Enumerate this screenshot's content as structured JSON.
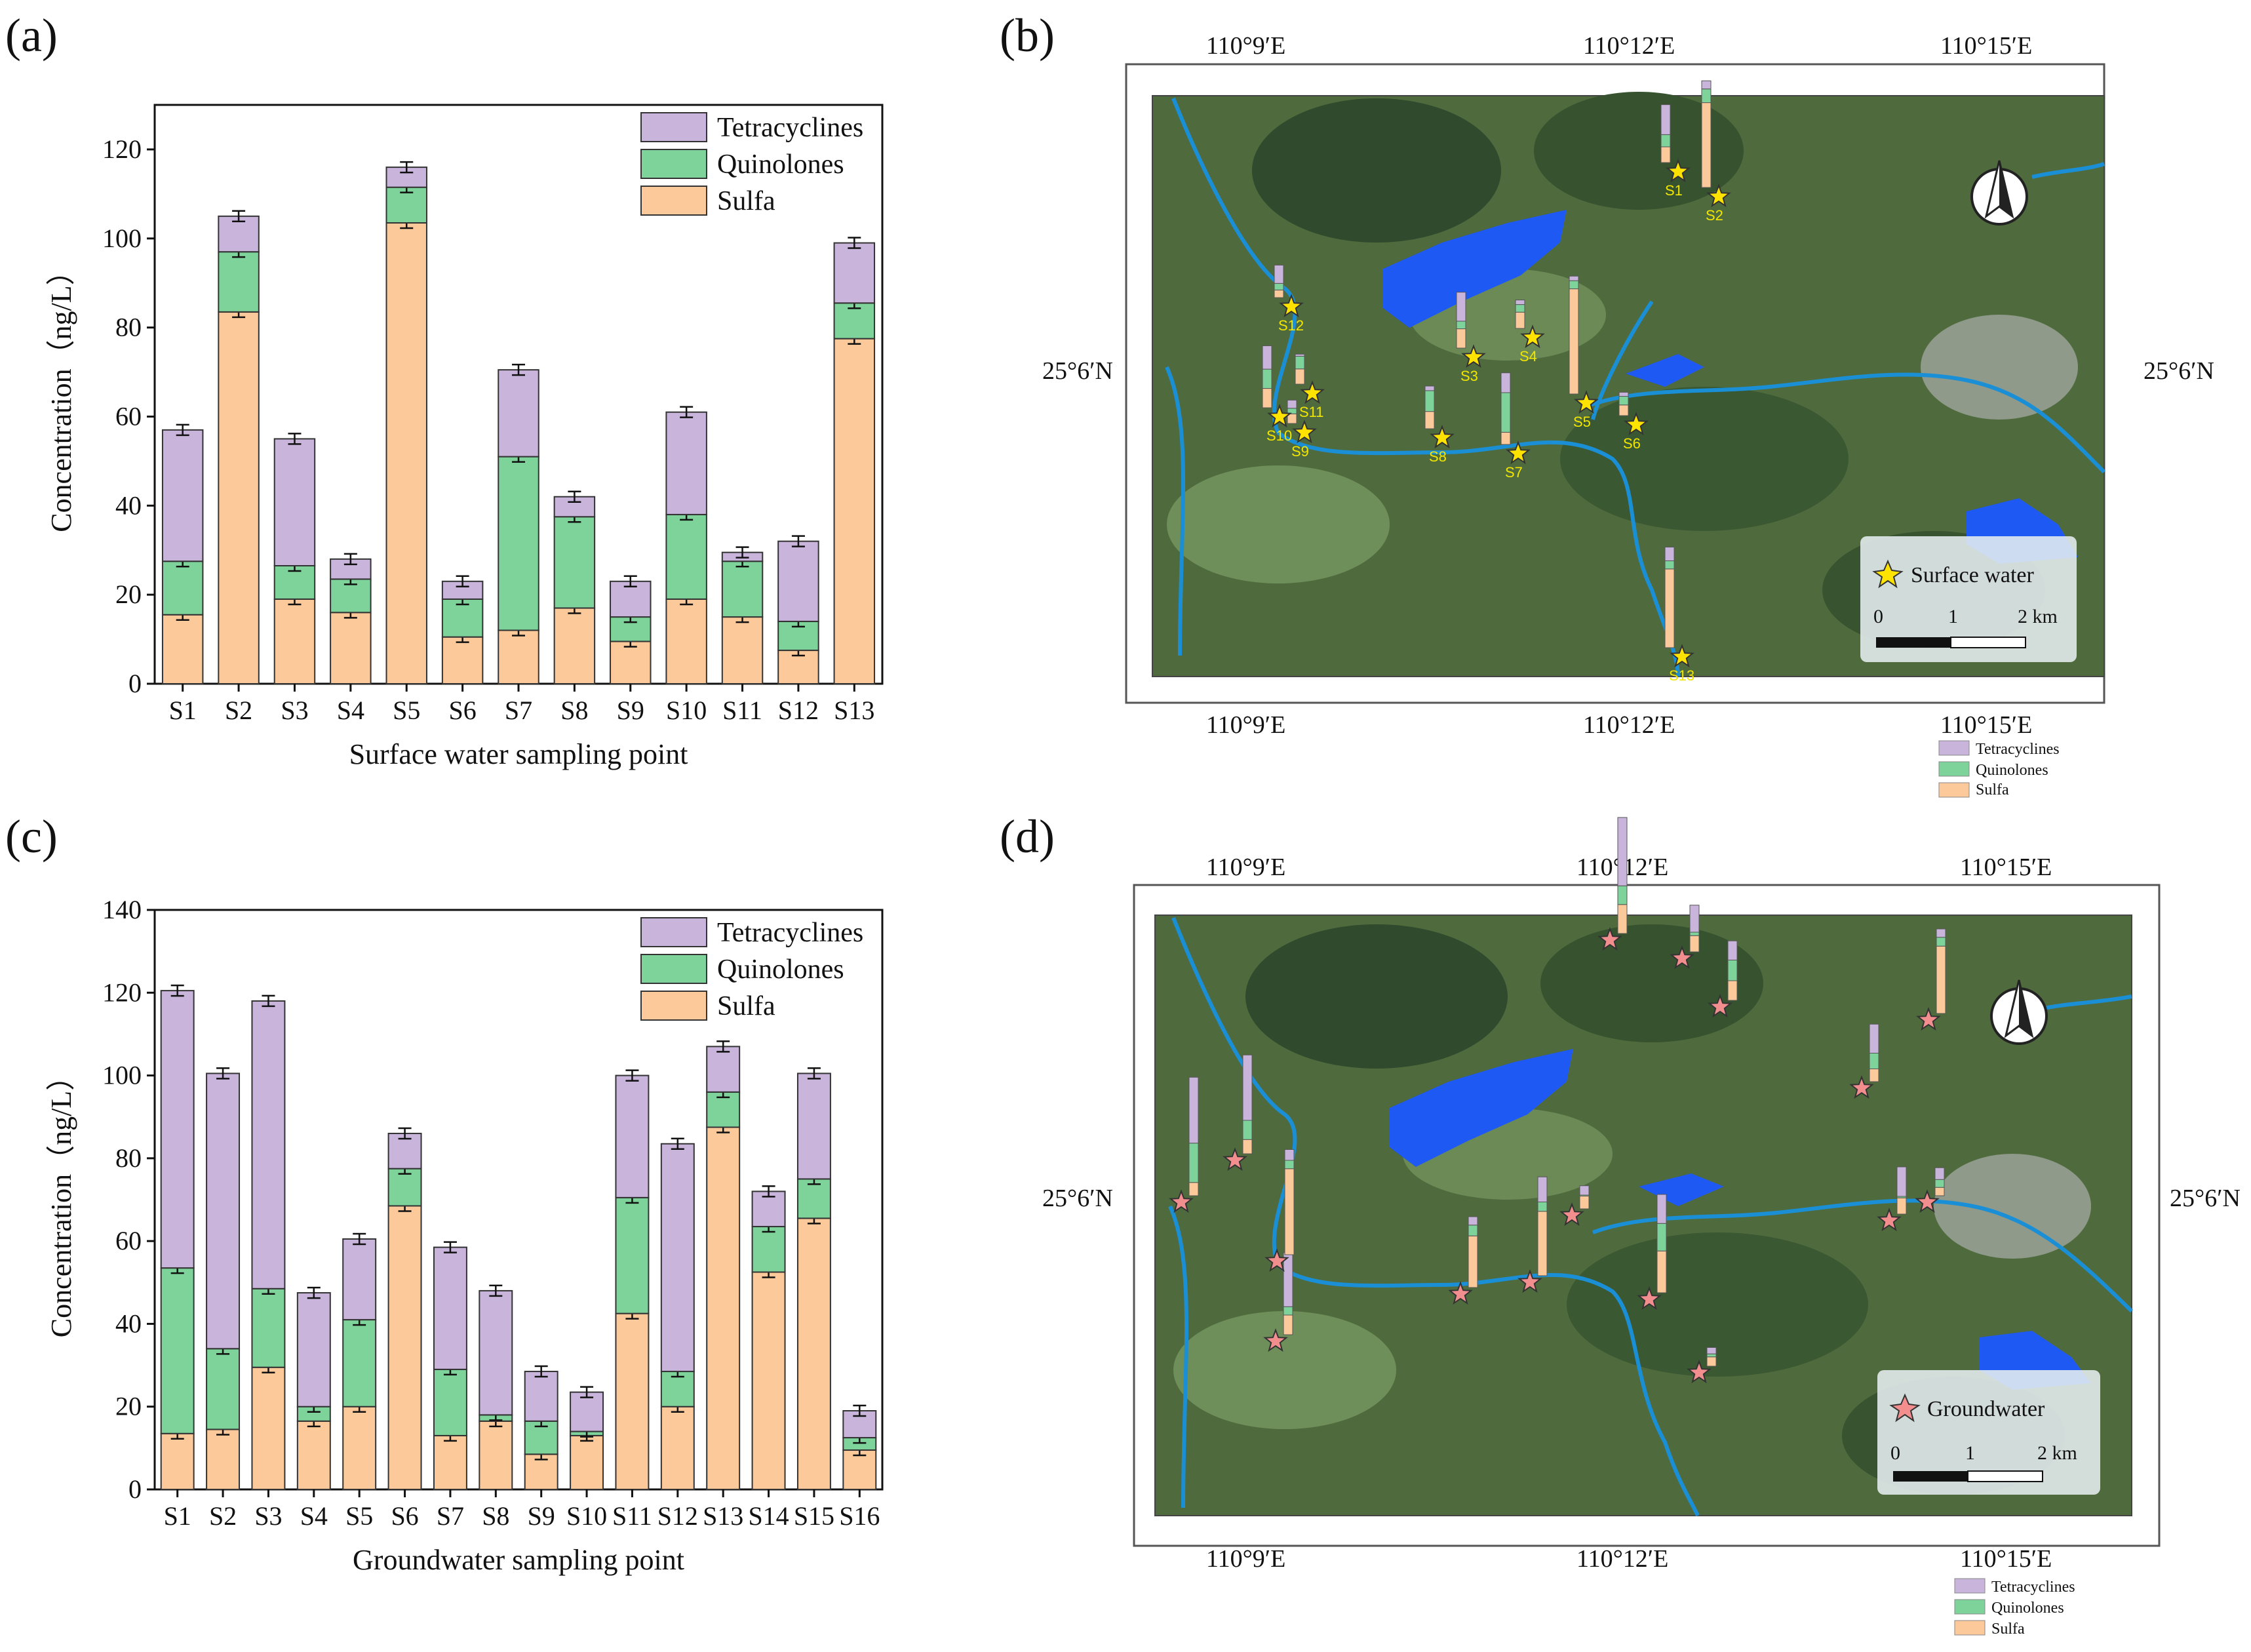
{
  "panels": {
    "a": "(a)",
    "b": "(b)",
    "c": "(c)",
    "d": "(d)"
  },
  "colors": {
    "tetracyclines": "#c9b5dc",
    "quinolones": "#7ed39a",
    "sulfa": "#fbc99a",
    "bar_stroke": "#333333",
    "water": "#1d59f2",
    "river": "#1b8fd6",
    "map_green": "#4f6b3e",
    "star_yellow": "#ffe300",
    "star_pink": "#f28e8e"
  },
  "chart_data": [
    {
      "type": "bar",
      "stacked": true,
      "panel": "a",
      "title": "",
      "xlabel": "Surface water sampling point",
      "ylabel": "Concentration（ng/L）",
      "ylim": [
        0,
        130
      ],
      "yticks": [
        0,
        20,
        40,
        60,
        80,
        100,
        120
      ],
      "categories": [
        "S1",
        "S2",
        "S3",
        "S4",
        "S5",
        "S6",
        "S7",
        "S8",
        "S9",
        "S10",
        "S11",
        "S12",
        "S13"
      ],
      "series": [
        {
          "name": "Sulfa",
          "values": [
            15.5,
            83.5,
            19.0,
            16.0,
            103.5,
            10.5,
            12.0,
            17.0,
            9.5,
            19.0,
            15.0,
            7.5,
            77.5
          ]
        },
        {
          "name": "Quinolones",
          "values": [
            12.0,
            13.5,
            7.5,
            7.5,
            8.0,
            8.5,
            39.0,
            20.5,
            5.5,
            19.0,
            12.5,
            6.5,
            8.0
          ]
        },
        {
          "name": "Tetracyclines",
          "values": [
            29.5,
            8.0,
            28.5,
            4.5,
            4.5,
            4.0,
            19.5,
            4.5,
            8.0,
            23.0,
            2.0,
            18.0,
            13.5
          ]
        }
      ],
      "legend": [
        "Tetracyclines",
        "Quinolones",
        "Sulfa"
      ],
      "legend_position": "top-right"
    },
    {
      "type": "bar",
      "stacked": true,
      "panel": "c",
      "title": "",
      "xlabel": "Groundwater sampling point",
      "ylabel": "Concentration（ng/L）",
      "ylim": [
        0,
        140
      ],
      "yticks": [
        0,
        20,
        40,
        60,
        80,
        100,
        120,
        140
      ],
      "categories": [
        "S1",
        "S2",
        "S3",
        "S4",
        "S5",
        "S6",
        "S7",
        "S8",
        "S9",
        "S10",
        "S11",
        "S12",
        "S13",
        "S14",
        "S15",
        "S16"
      ],
      "series": [
        {
          "name": "Sulfa",
          "values": [
            13.5,
            14.5,
            29.5,
            16.5,
            20.0,
            68.5,
            13.0,
            16.5,
            8.5,
            13.0,
            42.5,
            20.0,
            87.5,
            52.5,
            65.5,
            9.5
          ]
        },
        {
          "name": "Quinolones",
          "values": [
            40.0,
            19.5,
            19.0,
            3.5,
            21.0,
            9.0,
            16.0,
            1.5,
            8.0,
            1.0,
            28.0,
            8.5,
            8.5,
            11.0,
            9.5,
            3.0
          ]
        },
        {
          "name": "Tetracyclines",
          "values": [
            67.0,
            66.5,
            69.5,
            27.5,
            19.5,
            8.5,
            29.5,
            30.0,
            12.0,
            9.5,
            29.5,
            55.0,
            11.0,
            8.5,
            25.5,
            6.5
          ]
        }
      ],
      "legend": [
        "Tetracyclines",
        "Quinolones",
        "Sulfa"
      ],
      "legend_position": "top-right"
    }
  ],
  "maps": {
    "surface": {
      "top_ticks": [
        "110°9′E",
        "110°12′E",
        "110°15′E"
      ],
      "bottom_ticks": [
        "110°9′E",
        "110°12′E",
        "110°15′E"
      ],
      "left_tick": "25°6′N",
      "right_tick": "25°6′N",
      "legend_label": "Surface water",
      "scale_labels": [
        "0",
        "1",
        "2 km"
      ],
      "sites": [
        "S1",
        "S2",
        "S3",
        "S4",
        "S5",
        "S6",
        "S7",
        "S8",
        "S9",
        "S10",
        "S11",
        "S12",
        "S13"
      ],
      "key": [
        "Tetracyclines",
        "Quinolones",
        "Sulfa"
      ]
    },
    "ground": {
      "top_ticks": [
        "110°9′E",
        "110°12′E",
        "110°15′E"
      ],
      "bottom_ticks": [
        "110°9′E",
        "110°12′E",
        "110°15′E"
      ],
      "left_tick": "25°6′N",
      "right_tick": "25°6′N",
      "legend_label": "Groundwater",
      "scale_labels": [
        "0",
        "1",
        "2 km"
      ],
      "key": [
        "Tetracyclines",
        "Quinolones",
        "Sulfa"
      ]
    }
  }
}
